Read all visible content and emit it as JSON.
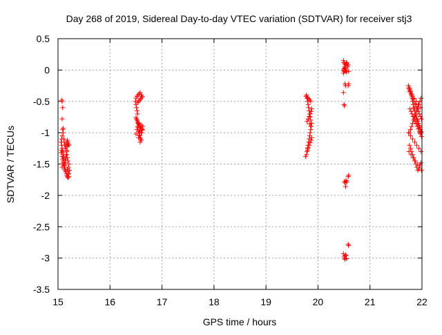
{
  "chart_data": {
    "type": "scatter",
    "title": "Day 268 of 2019, Sidereal Day-to-day VTEC variation (SDTVAR) for receiver stj3",
    "xlabel": "GPS time / hours",
    "ylabel": "SDTVAR / TECUs",
    "xlim": [
      15,
      22
    ],
    "ylim": [
      -3.5,
      0.5
    ],
    "xticks": [
      15,
      16,
      17,
      18,
      19,
      20,
      21,
      22
    ],
    "yticks": [
      0.5,
      0,
      -0.5,
      -1,
      -1.5,
      -2,
      -2.5,
      -3,
      -3.5
    ],
    "xtick_labels": [
      "15",
      "16",
      "17",
      "18",
      "19",
      "20",
      "21",
      "22"
    ],
    "ytick_labels": [
      "0.5",
      "0",
      "-0.5",
      "-1",
      "-1.5",
      "-2",
      "-2.5",
      "-3",
      "-3.5"
    ],
    "grid": true,
    "marker": "+",
    "color": "#ff0000",
    "series": [
      {
        "name": "SDTVAR",
        "x": [
          15.07,
          15.08,
          15.09,
          15.08,
          15.1,
          15.09,
          15.1,
          15.08,
          15.07,
          15.06,
          15.07,
          15.08,
          15.09,
          15.1,
          15.11,
          15.1,
          15.09,
          15.08,
          15.07,
          15.06,
          15.08,
          15.09,
          15.1,
          15.11,
          15.12,
          15.13,
          15.11,
          15.12,
          15.13,
          15.14,
          15.15,
          15.16,
          15.17,
          15.18,
          15.19,
          15.17,
          15.16,
          15.15,
          15.14,
          15.13,
          15.12,
          15.14,
          15.15,
          15.16,
          15.17,
          15.18,
          15.19,
          15.2,
          15.21,
          15.2,
          15.19,
          15.18,
          15.17,
          15.16,
          15.15,
          15.14,
          15.13,
          15.12,
          15.11,
          15.1,
          15.18,
          15.19,
          15.2,
          15.21,
          15.22,
          15.2,
          15.21,
          15.19,
          15.18,
          15.17,
          16.5,
          16.52,
          16.53,
          16.54,
          16.55,
          16.56,
          16.57,
          16.58,
          16.59,
          16.6,
          16.61,
          16.62,
          16.63,
          16.6,
          16.59,
          16.58,
          16.57,
          16.56,
          16.55,
          16.54,
          16.53,
          16.52,
          16.51,
          16.5,
          16.49,
          16.5,
          16.52,
          16.54,
          16.56,
          16.58,
          16.6,
          16.62,
          16.61,
          16.59,
          16.57,
          16.55,
          16.53,
          16.58,
          16.6,
          16.62,
          16.61,
          16.59,
          16.57,
          16.56,
          16.55,
          16.54,
          16.53,
          16.52,
          16.51,
          16.5,
          19.76,
          19.78,
          19.79,
          19.8,
          19.81,
          19.82,
          19.83,
          19.84,
          19.85,
          19.86,
          19.87,
          19.88,
          19.86,
          19.85,
          19.84,
          19.83,
          19.82,
          19.81,
          19.8,
          19.79,
          19.78,
          19.77,
          19.8,
          19.82,
          19.84,
          19.86,
          19.88,
          19.87,
          19.85,
          19.83,
          19.81,
          19.79,
          19.84,
          19.86,
          19.88,
          19.87,
          19.85,
          19.83,
          19.81,
          19.8,
          20.49,
          20.5,
          20.51,
          20.52,
          20.53,
          20.54,
          20.55,
          20.49,
          20.5,
          20.51,
          20.52,
          20.53,
          20.54,
          20.55,
          20.49,
          20.5,
          20.51,
          20.52,
          20.53,
          20.54,
          20.51,
          20.52,
          20.53,
          20.54,
          20.55,
          20.49,
          20.5,
          20.51,
          20.52,
          20.53,
          20.54,
          20.55,
          20.49,
          20.5,
          20.51,
          20.52,
          20.58,
          20.59,
          20.58,
          20.59,
          20.58,
          20.59,
          20.58,
          20.59,
          20.57,
          20.56,
          21.74,
          21.75,
          21.76,
          21.77,
          21.78,
          21.79,
          21.8,
          21.81,
          21.82,
          21.83,
          21.84,
          21.85,
          21.86,
          21.87,
          21.88,
          21.89,
          21.9,
          21.91,
          21.92,
          21.93,
          21.94,
          21.95,
          21.96,
          21.97,
          21.98,
          21.99,
          21.76,
          21.78,
          21.8,
          21.82,
          21.84,
          21.86,
          21.88,
          21.9,
          21.92,
          21.94,
          21.96,
          21.98,
          21.77,
          21.79,
          21.81,
          21.83,
          21.85,
          21.87,
          21.89,
          21.91,
          21.93,
          21.95,
          21.97,
          21.99,
          21.75,
          21.77,
          21.79,
          21.81,
          21.83,
          21.85,
          21.87,
          21.89,
          21.91,
          21.93,
          21.95,
          21.97,
          21.99,
          21.76,
          21.78,
          21.8,
          21.82,
          21.84,
          21.86,
          21.88,
          21.9,
          21.92,
          21.94,
          21.96,
          21.98,
          21.75,
          21.79,
          21.83,
          21.87,
          21.91,
          21.95,
          21.99,
          21.77,
          21.81,
          21.85,
          21.89,
          21.93,
          21.97,
          21.74,
          21.78,
          21.82,
          21.86,
          21.9,
          21.94,
          21.98
        ],
        "y": [
          -0.48,
          -0.5,
          -0.6,
          -0.78,
          -0.93,
          -0.95,
          -1.0,
          -1.05,
          -1.1,
          -1.15,
          -1.2,
          -1.25,
          -1.3,
          -1.35,
          -1.4,
          -1.45,
          -1.5,
          -1.55,
          -1.28,
          -1.32,
          -1.38,
          -1.42,
          -1.48,
          -1.52,
          -1.55,
          -1.58,
          -1.1,
          -1.15,
          -1.2,
          -1.25,
          -1.18,
          -1.22,
          -1.15,
          -1.12,
          -1.18,
          -1.3,
          -1.35,
          -1.4,
          -1.45,
          -1.5,
          -1.55,
          -1.6,
          -1.62,
          -1.65,
          -1.68,
          -1.7,
          -1.72,
          -1.65,
          -1.2,
          -1.18,
          -1.15,
          -1.22,
          -1.28,
          -1.35,
          -1.42,
          -1.48,
          -1.52,
          -1.45,
          -1.38,
          -1.32,
          -1.58,
          -1.62,
          -1.66,
          -1.7,
          -1.6,
          -1.55,
          -1.5,
          -1.45,
          -1.4,
          -1.35,
          -1.02,
          -0.95,
          -0.9,
          -0.92,
          -0.98,
          -1.0,
          -1.05,
          -1.08,
          -1.1,
          -1.12,
          -1.0,
          -0.95,
          -0.9,
          -0.88,
          -0.92,
          -0.96,
          -1.0,
          -1.04,
          -1.08,
          -0.85,
          -0.7,
          -0.65,
          -0.6,
          -0.55,
          -0.5,
          -0.45,
          -0.42,
          -0.4,
          -0.38,
          -0.36,
          -0.4,
          -0.42,
          -0.44,
          -0.46,
          -0.48,
          -0.5,
          -0.52,
          -1.15,
          -1.0,
          -0.96,
          -0.94,
          -0.92,
          -0.9,
          -0.88,
          -0.86,
          -0.84,
          -0.82,
          -0.8,
          -0.78,
          -0.76,
          -1.38,
          -1.35,
          -1.3,
          -1.25,
          -1.2,
          -1.15,
          -1.1,
          -1.05,
          -1.0,
          -0.95,
          -0.9,
          -0.85,
          -0.8,
          -0.75,
          -0.7,
          -0.65,
          -0.6,
          -0.55,
          -0.5,
          -0.45,
          -0.4,
          -0.42,
          -0.44,
          -0.46,
          -0.48,
          -0.5,
          -0.62,
          -0.66,
          -0.7,
          -0.74,
          -0.78,
          -0.82,
          -0.86,
          -0.9,
          -1.08,
          -1.12,
          -1.16,
          -1.2,
          -1.24,
          -1.28,
          0.15,
          0.12,
          0.1,
          0.05,
          0.0,
          -0.02,
          -0.03,
          -0.05,
          -0.02,
          0.02,
          0.05,
          0.08,
          0.1,
          0.12,
          -0.36,
          -0.55,
          -0.57,
          -0.22,
          -0.25,
          -1.76,
          -1.78,
          -1.8,
          -1.86,
          -1.77,
          -1.79,
          -2.93,
          -2.97,
          -3.0,
          -3.02,
          -2.95,
          -2.96,
          -3.01,
          0.0,
          0.02,
          -0.01,
          0.03,
          0.08,
          -0.02,
          -0.25,
          -0.22,
          -1.7,
          -1.68,
          -2.78,
          -2.8,
          0.05,
          0.1,
          -0.25,
          -0.28,
          -0.3,
          -0.32,
          -0.35,
          -0.38,
          -0.4,
          -0.45,
          -0.5,
          -0.55,
          -0.6,
          -0.62,
          -0.65,
          -0.7,
          -0.72,
          -0.75,
          -0.78,
          -0.8,
          -0.82,
          -0.85,
          -0.88,
          -0.9,
          -0.92,
          -0.95,
          -0.98,
          -1.0,
          -1.2,
          -1.25,
          -1.3,
          -1.35,
          -1.4,
          -1.45,
          -1.5,
          -1.55,
          -1.6,
          -1.58,
          -1.52,
          -1.48,
          -0.62,
          -0.66,
          -0.7,
          -0.74,
          -0.78,
          -0.82,
          -0.86,
          -0.9,
          -0.94,
          -0.98,
          -1.02,
          -1.06,
          -0.3,
          -0.34,
          -0.38,
          -0.42,
          -0.46,
          -0.5,
          -0.54,
          -0.58,
          -0.62,
          -0.66,
          -0.7,
          -0.74,
          -0.78,
          -1.0,
          -0.95,
          -0.9,
          -0.85,
          -0.8,
          -0.75,
          -0.7,
          -0.65,
          -0.6,
          -0.55,
          -0.5,
          -0.45,
          -1.3,
          -1.35,
          -1.4,
          -1.45,
          -1.5,
          -1.55,
          -1.6,
          -0.35,
          -0.4,
          -0.45,
          -0.5,
          -0.55,
          -0.6,
          -1.0,
          -1.05,
          -1.1,
          -1.15,
          -1.2,
          -1.25,
          -1.3
        ]
      }
    ]
  }
}
